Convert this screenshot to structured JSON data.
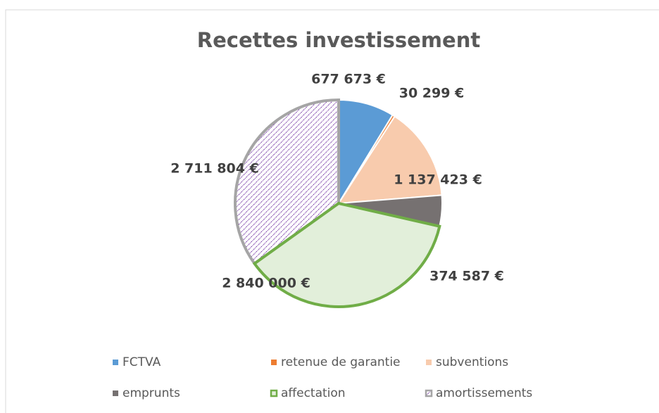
{
  "chart_data": {
    "type": "pie",
    "title": "Recettes investissement",
    "categories": [
      "FCTVA",
      "retenue de garantie",
      "subventions",
      "emprunts",
      "affectation",
      "amortissements"
    ],
    "values": [
      677673,
      30299,
      1137423,
      374587,
      2840000,
      2711804
    ],
    "value_labels": [
      "677 673 €",
      "30 299 €",
      "1 137 423 €",
      "374 587 €",
      "2 840 000 €",
      "2 711 804 €"
    ],
    "colors": [
      "#5b9bd5",
      "#ed7d31",
      "#f8cbad",
      "#767171",
      "#e2efda",
      "#7030a0"
    ],
    "legend": "bottom"
  }
}
